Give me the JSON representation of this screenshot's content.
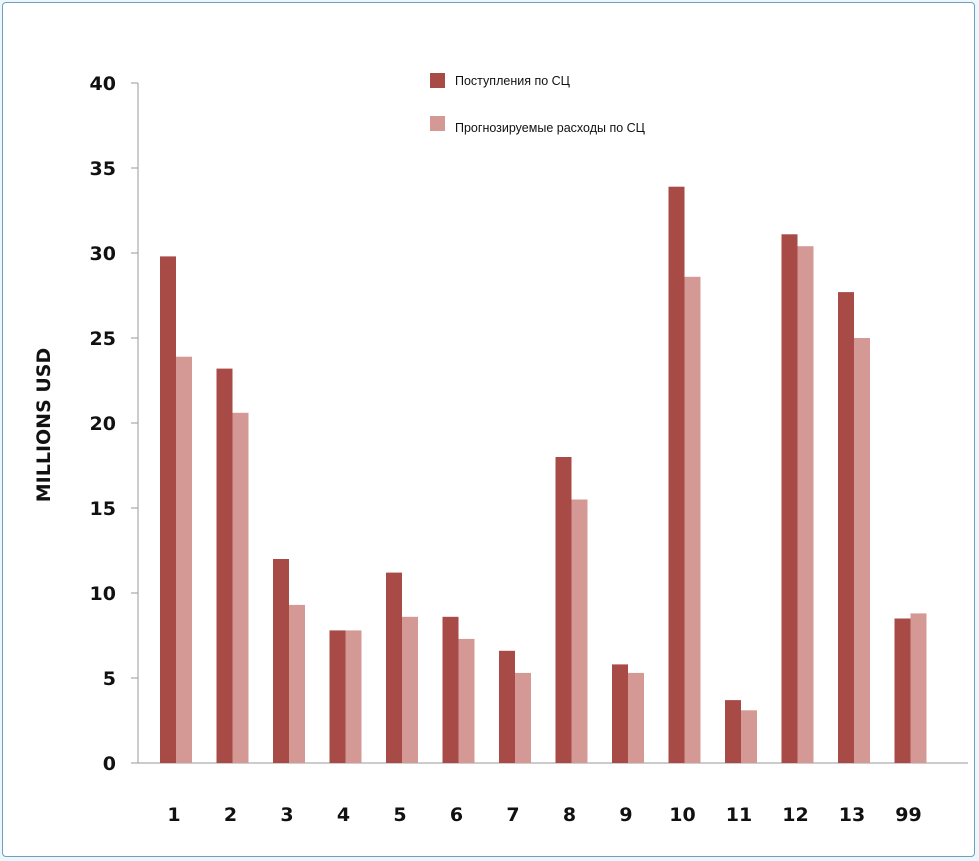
{
  "chart_data": {
    "type": "bar",
    "title": "",
    "xlabel": "",
    "ylabel": "MILLIONS USD",
    "ylim": [
      0,
      40
    ],
    "yticks": [
      0,
      5,
      10,
      15,
      20,
      25,
      30,
      35,
      40
    ],
    "grid": false,
    "legend_position": "top-right",
    "categories": [
      "1",
      "2",
      "3",
      "4",
      "5",
      "6",
      "7",
      "8",
      "9",
      "10",
      "11",
      "12",
      "13",
      "99"
    ],
    "series": [
      {
        "name": "Поступления по СЦ",
        "color": "#a84a45",
        "values": [
          29.8,
          23.2,
          12.0,
          7.8,
          11.2,
          8.6,
          6.6,
          18.0,
          5.8,
          33.9,
          3.7,
          31.1,
          27.7,
          8.5
        ]
      },
      {
        "name": "Прогнозируемые расходы по СЦ",
        "color": "#d49995",
        "values": [
          23.9,
          20.6,
          9.3,
          7.8,
          8.6,
          7.3,
          5.3,
          15.5,
          5.3,
          28.6,
          3.1,
          30.4,
          25.0,
          8.8
        ]
      }
    ]
  }
}
